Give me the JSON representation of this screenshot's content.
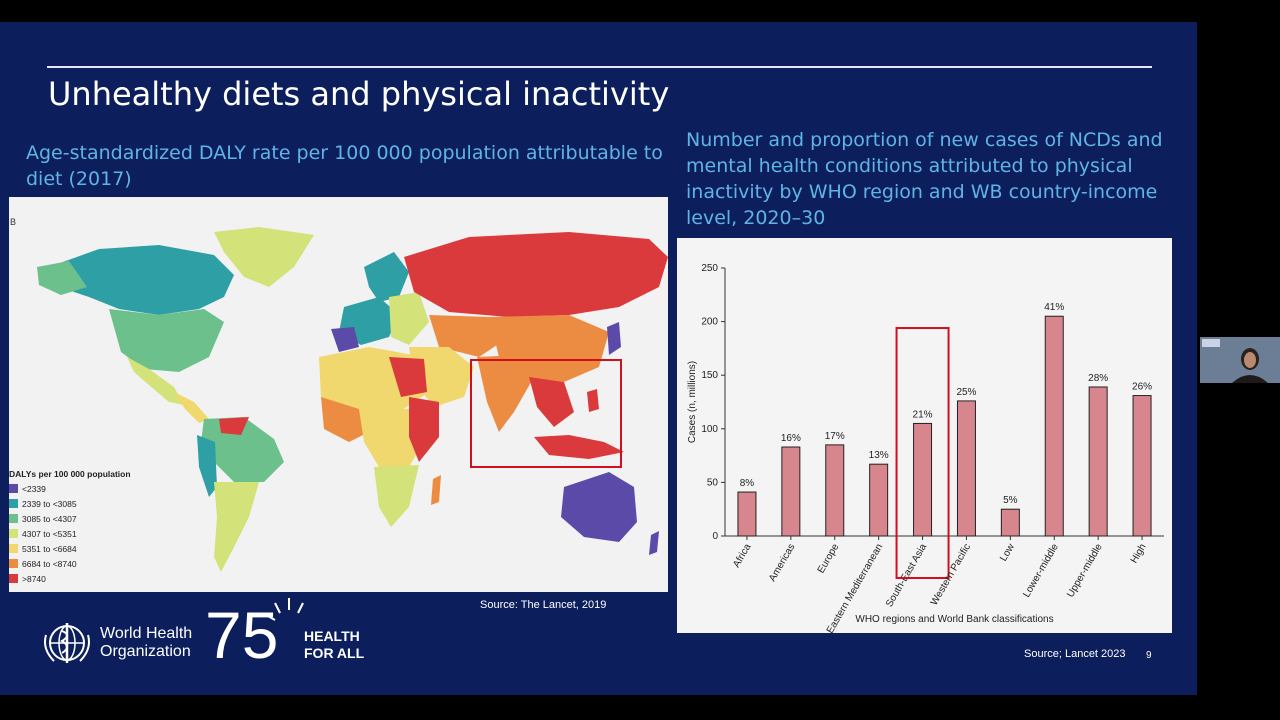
{
  "slide": {
    "title": "Unhealthy diets and physical inactivity",
    "left_subtitle": "Age-standardized DALY rate per 100 000 population attributable to diet (2017)",
    "right_subtitle": "Number and proportion of new cases of NCDs and mental health conditions attributed to physical inactivity by WHO region and WB country-income level, 2020–30",
    "left_source": "Source: The Lancet, 2019",
    "right_source": "Source; Lancet 2023",
    "page_number": "9"
  },
  "map": {
    "panel_label": "B",
    "legend_title": "DALYs per 100 000 population",
    "legend": [
      {
        "label": "<2339",
        "color": "#5b4aa8"
      },
      {
        "label": "2339 to <3085",
        "color": "#2f9fa6"
      },
      {
        "label": "3085 to <4307",
        "color": "#6cc08c"
      },
      {
        "label": "4307 to <5351",
        "color": "#d4e27a"
      },
      {
        "label": "5351 to <6684",
        "color": "#f0d76e"
      },
      {
        "label": "6684 to <8740",
        "color": "#ec8c43"
      },
      {
        "label": ">8740",
        "color": "#db3a3c"
      }
    ]
  },
  "footer": {
    "org_line1": "World Health",
    "org_line2": "Organization",
    "emblem_number": "75",
    "tagline_line1": "HEALTH",
    "tagline_line2": "FOR ALL"
  },
  "chart_data": {
    "type": "bar",
    "categories": [
      "Africa",
      "Americas",
      "Europe",
      "Eastern Mediterranean",
      "South-East Asia",
      "Western Pacific",
      "Low",
      "Lower-middle",
      "Upper-middle",
      "High"
    ],
    "values": [
      41,
      83,
      85,
      67,
      105,
      126,
      25,
      205,
      139,
      131
    ],
    "data_labels": [
      "8%",
      "16%",
      "17%",
      "13%",
      "21%",
      "25%",
      "5%",
      "41%",
      "28%",
      "26%"
    ],
    "xlabel": "WHO regions and World Bank classifications",
    "ylabel": "Cases (n, millions)",
    "ylim": [
      0,
      250
    ],
    "yticks": [
      0,
      50,
      100,
      150,
      200,
      250
    ],
    "highlight_category": "South-East Asia",
    "bar_color": "#d8868e",
    "grid": false,
    "legend": "none"
  },
  "colors": {
    "slide_background": "#0c1f5c",
    "subtitle": "#5fb4e6",
    "highlight_box": "#d0101e"
  }
}
